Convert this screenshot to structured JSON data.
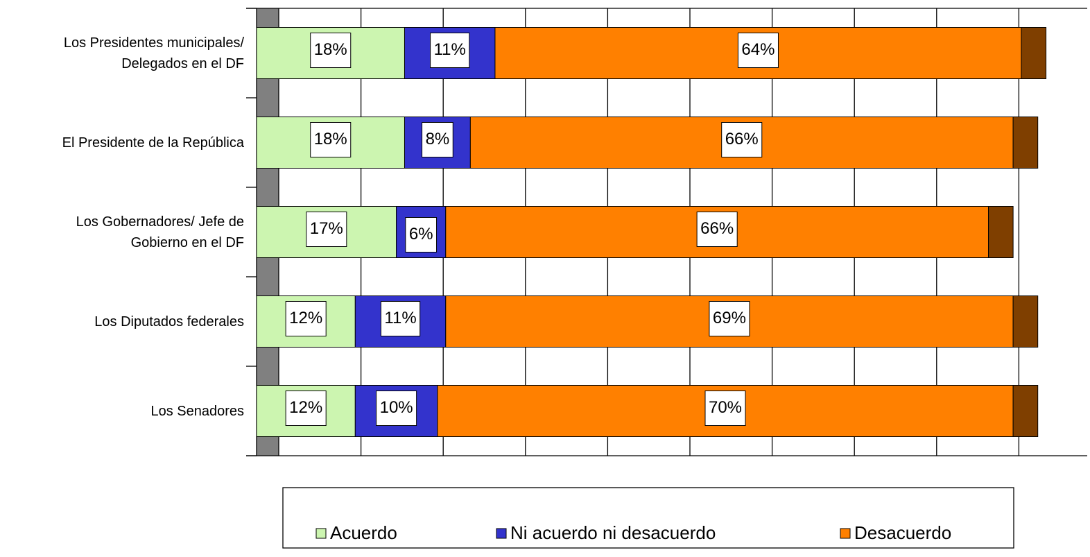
{
  "chart_data": {
    "type": "stacked-bar-horizontal",
    "categories": [
      "Los Presidentes municipales/\nDelegados en el DF",
      "El Presidente de la República",
      "Los Gobernadores/ Jefe de\nGobierno en el DF",
      "Los Diputados federales",
      "Los Senadores"
    ],
    "series": [
      {
        "name": "Acuerdo",
        "color": "#ccf5b0",
        "values": [
          18,
          18,
          17,
          12,
          12
        ],
        "value_labels": [
          "18%",
          "18%",
          "17%",
          "12%",
          "12%"
        ]
      },
      {
        "name": "Ni acuerdo ni desacuerdo",
        "color": "#3333cc",
        "values": [
          11,
          8,
          6,
          11,
          10
        ],
        "value_labels": [
          "11%",
          "8%",
          "6%",
          "11%",
          "10%"
        ]
      },
      {
        "name": "Desacuerdo",
        "color": "#ff8000",
        "values": [
          64,
          66,
          66,
          69,
          70
        ],
        "value_labels": [
          "64%",
          "66%",
          "66%",
          "69%",
          "70%"
        ]
      },
      {
        "color": "#7f3f00",
        "values": [
          3,
          3,
          3,
          3,
          3
        ]
      }
    ],
    "xlim": [
      0,
      100
    ],
    "legend": "bottom"
  }
}
